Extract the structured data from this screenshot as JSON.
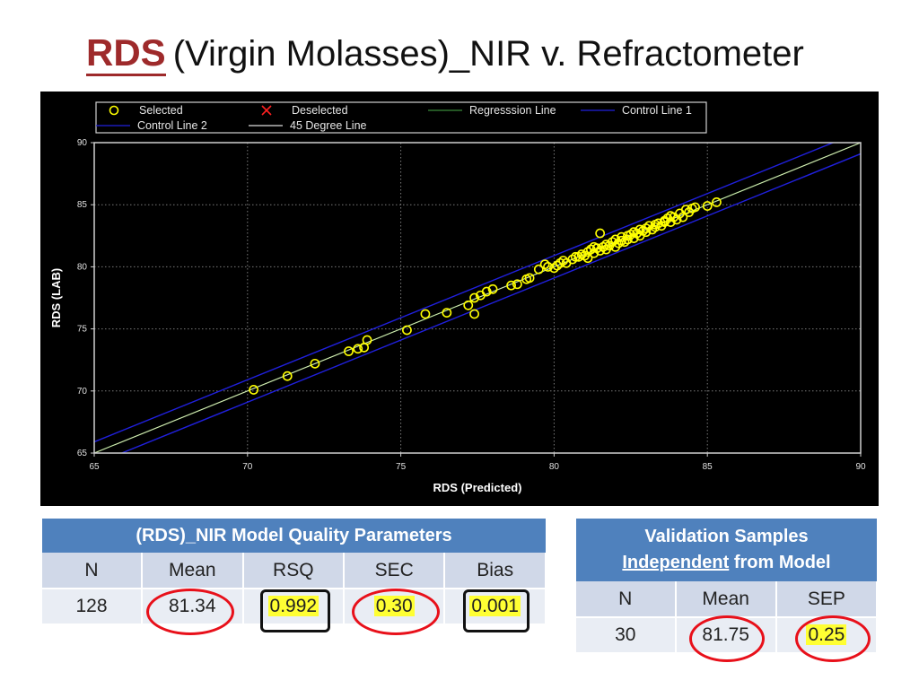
{
  "title": {
    "prefix": "RDS",
    "rest": "(Virgin Molasses)_NIR v. Refractometer"
  },
  "chart_data": {
    "type": "scatter",
    "xlabel": "RDS (Predicted)",
    "ylabel": "RDS (LAB)",
    "xlim": [
      65,
      90
    ],
    "ylim": [
      65,
      90
    ],
    "xticks": [
      65,
      70,
      75,
      80,
      85,
      90
    ],
    "yticks": [
      65,
      70,
      75,
      80,
      85,
      90
    ],
    "grid": true,
    "legend_position": "top",
    "legend": [
      {
        "label": "Selected",
        "symbol": "circle",
        "color": "#ffff00"
      },
      {
        "label": "Deselected",
        "symbol": "x",
        "color": "#ff2020"
      },
      {
        "label": "Regresssion Line",
        "symbol": "line",
        "color": "#3a8a3a"
      },
      {
        "label": "Control Line 1",
        "symbol": "line",
        "color": "#2020dd"
      },
      {
        "label": "Control Line 2",
        "symbol": "line",
        "color": "#2020dd"
      },
      {
        "label": "45 Degree Line",
        "symbol": "line",
        "color": "#dddddd"
      }
    ],
    "lines": {
      "regression": {
        "slope": 1.0,
        "intercept": 0.0
      },
      "control_offset": 0.9
    },
    "points": [
      [
        70.2,
        70.1
      ],
      [
        71.3,
        71.2
      ],
      [
        72.2,
        72.2
      ],
      [
        73.3,
        73.2
      ],
      [
        73.6,
        73.4
      ],
      [
        73.8,
        73.5
      ],
      [
        73.9,
        74.1
      ],
      [
        75.2,
        74.9
      ],
      [
        75.8,
        76.2
      ],
      [
        76.5,
        76.3
      ],
      [
        77.2,
        76.9
      ],
      [
        77.4,
        76.2
      ],
      [
        77.4,
        77.5
      ],
      [
        77.6,
        77.7
      ],
      [
        77.8,
        78.0
      ],
      [
        78.0,
        78.2
      ],
      [
        78.6,
        78.5
      ],
      [
        78.8,
        78.6
      ],
      [
        79.1,
        79.0
      ],
      [
        79.2,
        79.1
      ],
      [
        79.5,
        79.8
      ],
      [
        79.7,
        80.2
      ],
      [
        79.8,
        80.0
      ],
      [
        80.0,
        79.9
      ],
      [
        80.1,
        80.1
      ],
      [
        80.2,
        80.3
      ],
      [
        80.3,
        80.5
      ],
      [
        80.4,
        80.3
      ],
      [
        80.6,
        80.6
      ],
      [
        80.7,
        80.8
      ],
      [
        80.9,
        81.0
      ],
      [
        81.0,
        80.9
      ],
      [
        81.1,
        81.2
      ],
      [
        81.1,
        80.7
      ],
      [
        81.2,
        81.4
      ],
      [
        81.3,
        81.1
      ],
      [
        81.4,
        81.5
      ],
      [
        81.5,
        81.3
      ],
      [
        81.5,
        82.7
      ],
      [
        81.6,
        81.6
      ],
      [
        81.7,
        81.4
      ],
      [
        81.7,
        81.8
      ],
      [
        81.8,
        81.7
      ],
      [
        81.9,
        82.0
      ],
      [
        82.0,
        81.6
      ],
      [
        82.0,
        82.2
      ],
      [
        82.1,
        81.9
      ],
      [
        82.2,
        82.4
      ],
      [
        82.3,
        82.0
      ],
      [
        82.4,
        82.5
      ],
      [
        82.4,
        82.2
      ],
      [
        82.5,
        82.6
      ],
      [
        82.6,
        82.3
      ],
      [
        82.6,
        82.8
      ],
      [
        82.7,
        82.7
      ],
      [
        82.8,
        83.0
      ],
      [
        82.8,
        82.5
      ],
      [
        82.9,
        82.9
      ],
      [
        83.0,
        83.1
      ],
      [
        83.0,
        82.8
      ],
      [
        83.1,
        83.3
      ],
      [
        83.2,
        83.0
      ],
      [
        83.3,
        83.4
      ],
      [
        83.3,
        83.2
      ],
      [
        83.4,
        83.5
      ],
      [
        83.5,
        83.3
      ],
      [
        83.6,
        83.7
      ],
      [
        83.6,
        83.6
      ],
      [
        83.7,
        83.9
      ],
      [
        83.8,
        83.6
      ],
      [
        83.8,
        84.1
      ],
      [
        83.9,
        84.0
      ],
      [
        84.0,
        83.8
      ],
      [
        84.1,
        84.3
      ],
      [
        84.2,
        84.0
      ],
      [
        84.3,
        84.6
      ],
      [
        84.4,
        84.4
      ],
      [
        84.5,
        84.7
      ],
      [
        84.6,
        84.8
      ],
      [
        85.0,
        84.9
      ],
      [
        85.3,
        85.2
      ],
      [
        82.2,
        82.1
      ],
      [
        81.3,
        81.6
      ],
      [
        80.8,
        80.8
      ]
    ]
  },
  "table_model": {
    "header": "(RDS)_NIR Model Quality Parameters",
    "columns": [
      "N",
      "Mean",
      "RSQ",
      "SEC",
      "Bias"
    ],
    "values": [
      "128",
      "81.34",
      "0.992",
      "0.30",
      "0.001"
    ]
  },
  "table_validation": {
    "header_line1": "Validation Samples",
    "header_line2_underlined": "Independent",
    "header_line2_rest": "from Model",
    "columns": [
      "N",
      "Mean",
      "SEP"
    ],
    "values": [
      "30",
      "81.75",
      "0.25"
    ]
  },
  "colors": {
    "title_accent": "#9e2a2b",
    "header_blue": "#4f81bd",
    "row_light": "#d0d8e8",
    "row_lighter": "#e9edf4",
    "circle_red": "#e8101a",
    "highlight": "#ffff33"
  }
}
